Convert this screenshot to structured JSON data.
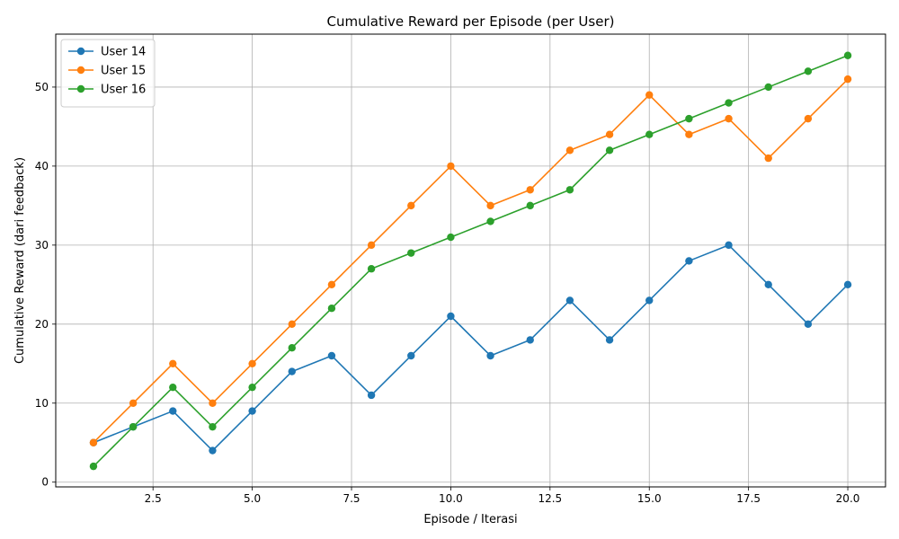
{
  "chart_data": {
    "type": "line",
    "title": "Cumulative Reward per Episode (per User)",
    "xlabel": "Episode / Iterasi",
    "ylabel": "Cumulative Reward (dari feedback)",
    "x": [
      1,
      2,
      3,
      4,
      5,
      6,
      7,
      8,
      9,
      10,
      11,
      12,
      13,
      14,
      15,
      16,
      17,
      18,
      19,
      20
    ],
    "xlim": [
      0.05,
      20.95
    ],
    "ylim": [
      -0.6,
      56.7
    ],
    "xticks": [
      2.5,
      5.0,
      7.5,
      10.0,
      12.5,
      15.0,
      17.5,
      20.0
    ],
    "xtick_labels": [
      "2.5",
      "5.0",
      "7.5",
      "10.0",
      "12.5",
      "15.0",
      "17.5",
      "20.0"
    ],
    "yticks": [
      0,
      10,
      20,
      30,
      40,
      50
    ],
    "ytick_labels": [
      "0",
      "10",
      "20",
      "30",
      "40",
      "50"
    ],
    "grid": true,
    "legend_position": "top-left",
    "series": [
      {
        "name": "User 14",
        "color": "#1f77b4",
        "values": [
          5,
          7,
          9,
          4,
          9,
          14,
          16,
          11,
          16,
          21,
          16,
          18,
          23,
          18,
          23,
          28,
          30,
          25,
          20,
          25
        ]
      },
      {
        "name": "User 15",
        "color": "#ff7f0e",
        "values": [
          5,
          10,
          15,
          10,
          15,
          20,
          25,
          30,
          35,
          40,
          35,
          37,
          42,
          44,
          49,
          44,
          46,
          41,
          46,
          51
        ]
      },
      {
        "name": "User 16",
        "color": "#2ca02c",
        "values": [
          2,
          7,
          12,
          7,
          12,
          17,
          22,
          27,
          29,
          31,
          33,
          35,
          37,
          42,
          44,
          46,
          48,
          50,
          52,
          54
        ]
      }
    ]
  }
}
